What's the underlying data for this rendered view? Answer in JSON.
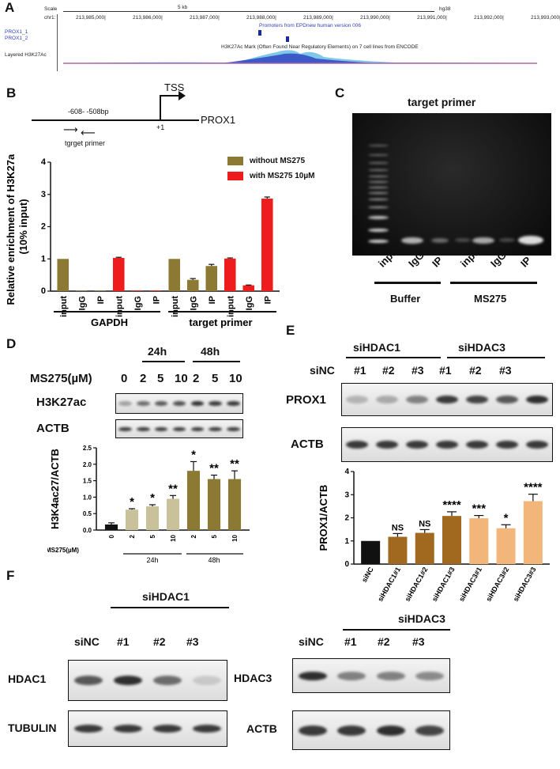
{
  "panels": {
    "A": "A",
    "B": "B",
    "C": "C",
    "D": "D",
    "E": "E",
    "F": "F"
  },
  "panelA": {
    "scale_label": "Scale",
    "chr_label": "chr1:",
    "scale_value": "5 kb",
    "genome": "hg38",
    "coords": [
      "213,985,000|",
      "213,986,000|",
      "213,987,000|",
      "213,988,000|",
      "213,989,000|",
      "213,990,000|",
      "213,991,000|",
      "213,992,000|",
      "213,993,000|"
    ],
    "promoter_track": "Promoters from EPDnew human version 006",
    "prox1_1": "PROX1_1",
    "prox1_2": "PROX1_2",
    "h3k_track": "H3K27Ac Mark (Often Found Near Regulatory Elements) on 7 cell lines from ENCODE",
    "layered": "Layered H3K27Ac"
  },
  "panelB": {
    "tss": "TSS",
    "gene": "PROX1",
    "region": "-608- -508bp",
    "plus1": "+1",
    "primer": "tgrget primer",
    "legend": [
      {
        "name": "without MS275",
        "color": "#8c7a34"
      },
      {
        "name": "with MS275 10µM",
        "color": "#ee1c1c"
      }
    ]
  },
  "panelC": {
    "title": "target primer",
    "lanes": [
      "input",
      "IgG",
      "IP",
      "input",
      "IgG",
      "IP"
    ],
    "groups": [
      "Buffer",
      "MS275"
    ]
  },
  "panelD": {
    "times": [
      "24h",
      "48h"
    ],
    "ms_label": "MS275(µM)",
    "doses": [
      "0",
      "2",
      "5",
      "10",
      "2",
      "5",
      "10"
    ],
    "blots": [
      "H3K27ac",
      "ACTB"
    ],
    "bottom_label": "MS275(µM)"
  },
  "panelE": {
    "groups": [
      "siHDAC1",
      "siHDAC3"
    ],
    "lanes": [
      "siNC",
      "#1",
      "#2",
      "#3",
      "#1",
      "#2",
      "#3"
    ],
    "blots": [
      "PROX1",
      "ACTB"
    ]
  },
  "panelF": {
    "left": {
      "group": "siHDAC1",
      "lanes": [
        "siNC",
        "#1",
        "#2",
        "#3"
      ],
      "blots": [
        "HDAC1",
        "TUBULIN"
      ]
    },
    "right": {
      "group": "siHDAC3",
      "lanes": [
        "siNC",
        "#1",
        "#2",
        "#3"
      ],
      "blots": [
        "HDAC3",
        "ACTB"
      ]
    }
  },
  "chart_data": [
    {
      "type": "bar",
      "ylabel": "Relative enrichment of H3K27ac (10% input)",
      "ylim": [
        0,
        4
      ],
      "yticks": [
        0,
        1,
        2,
        3,
        4
      ],
      "categories": [
        "input",
        "IgG",
        "IP",
        "input",
        "IgG",
        "IP",
        "input",
        "IgG",
        "IP",
        "input",
        "IgG",
        "IP"
      ],
      "colors": [
        "#8c7a34",
        "#8c7a34",
        "#8c7a34",
        "#ee1c1c",
        "#ee1c1c",
        "#ee1c1c",
        "#8c7a34",
        "#8c7a34",
        "#8c7a34",
        "#ee1c1c",
        "#ee1c1c",
        "#ee1c1c"
      ],
      "values": [
        1.0,
        0.01,
        0.01,
        1.03,
        0.02,
        0.02,
        1.0,
        0.35,
        0.78,
        1.01,
        0.18,
        2.87
      ],
      "errors": [
        0,
        0,
        0,
        0.02,
        0,
        0,
        0,
        0.04,
        0.05,
        0.02,
        0.01,
        0.05
      ],
      "groups": [
        "GAPDH",
        "target primer"
      ]
    },
    {
      "type": "bar",
      "ylabel": "H3K4ac27/ACTB",
      "ylim": [
        0,
        2.5
      ],
      "yticks": [
        "0.0",
        "0.5",
        "1.0",
        "1.5",
        "2.0",
        "2.5"
      ],
      "categories": [
        "0",
        "2",
        "5",
        "10",
        "2",
        "5",
        "10"
      ],
      "colors": [
        "#111111",
        "#c9c19a",
        "#c9c19a",
        "#c9c19a",
        "#8c7a34",
        "#8c7a34",
        "#8c7a34"
      ],
      "values": [
        0.17,
        0.62,
        0.72,
        0.95,
        1.8,
        1.55,
        1.55
      ],
      "errors": [
        0.05,
        0.03,
        0.05,
        0.1,
        0.28,
        0.12,
        0.25
      ],
      "sig": [
        "",
        "*",
        "*",
        "**",
        "*",
        "**",
        "**"
      ],
      "groups": [
        "24h",
        "48h"
      ]
    },
    {
      "type": "bar",
      "ylabel": "PROX1/ACTB",
      "ylim": [
        0,
        4
      ],
      "yticks": [
        0,
        1,
        2,
        3,
        4
      ],
      "categories": [
        "siNC",
        "siHDAC1#1",
        "siHDAC1#2",
        "siHDAC1#3",
        "siHDAC3#1",
        "siHDAC3#2",
        "siHDAC3#3"
      ],
      "colors": [
        "#111111",
        "#a0691f",
        "#a0691f",
        "#a0691f",
        "#f2b67a",
        "#f2b67a",
        "#f2b67a"
      ],
      "values": [
        1.0,
        1.18,
        1.35,
        2.08,
        1.98,
        1.55,
        2.72
      ],
      "errors": [
        0,
        0.14,
        0.14,
        0.18,
        0.12,
        0.15,
        0.3
      ],
      "sig": [
        "",
        "NS",
        "NS",
        "****",
        "***",
        "*",
        "****"
      ]
    }
  ]
}
